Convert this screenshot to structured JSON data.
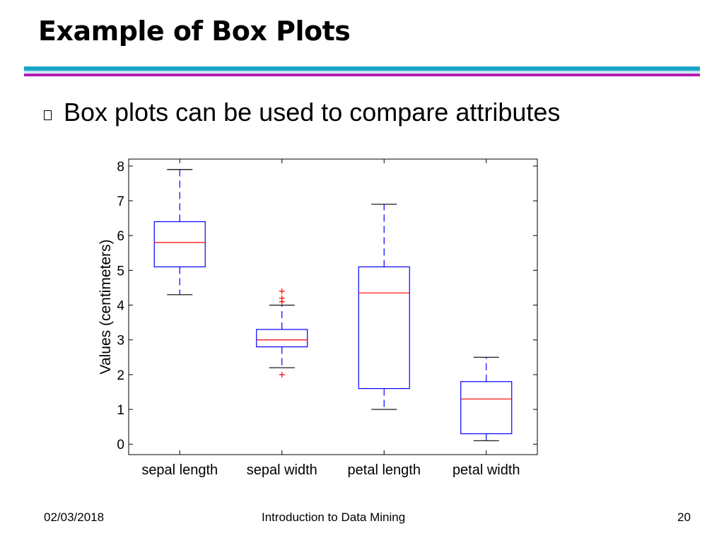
{
  "slide": {
    "title": "Example of Box Plots",
    "bullet": "Box plots can be used to compare attributes"
  },
  "footer": {
    "date": "02/03/2018",
    "center": "Introduction to Data Mining",
    "page": "20"
  },
  "colors": {
    "title_rule_teal": "#1aa6c8",
    "title_rule_purple": "#b01cb0",
    "box": "#0000ff",
    "median": "#ff0000",
    "outlier": "#ff0000",
    "whisker_cap": "#000000"
  },
  "chart_data": {
    "type": "box",
    "title": "",
    "ylabel": "Values (centimeters)",
    "xlabel": "",
    "ylim": [
      -0.3,
      8.2
    ],
    "yticks": [
      0,
      1,
      2,
      3,
      4,
      5,
      6,
      7,
      8
    ],
    "grid": false,
    "categories": [
      "sepal length",
      "sepal width",
      "petal length",
      "petal width"
    ],
    "boxes": [
      {
        "label": "sepal length",
        "min": 4.3,
        "q1": 5.1,
        "median": 5.8,
        "q3": 6.4,
        "max": 7.9,
        "outliers": []
      },
      {
        "label": "sepal width",
        "min": 2.2,
        "q1": 2.8,
        "median": 3.0,
        "q3": 3.3,
        "max": 4.0,
        "outliers": [
          2.0,
          4.1,
          4.2,
          4.4
        ]
      },
      {
        "label": "petal length",
        "min": 1.0,
        "q1": 1.6,
        "median": 4.35,
        "q3": 5.1,
        "max": 6.9,
        "outliers": []
      },
      {
        "label": "petal width",
        "min": 0.1,
        "q1": 0.3,
        "median": 1.3,
        "q3": 1.8,
        "max": 2.5,
        "outliers": []
      }
    ]
  }
}
